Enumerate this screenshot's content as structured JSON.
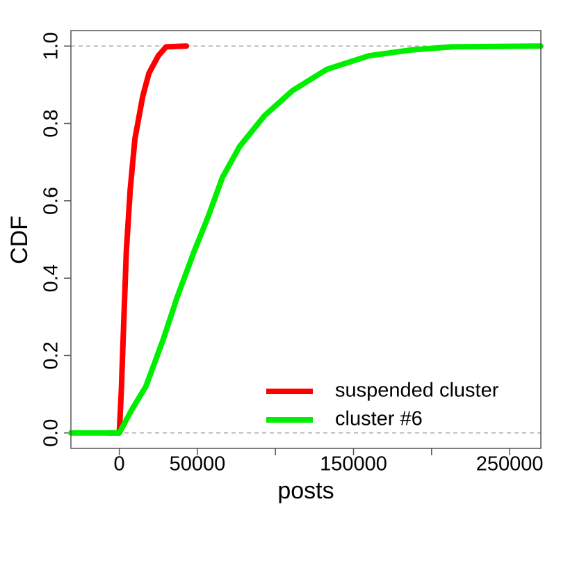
{
  "chart_data": {
    "type": "line",
    "xlabel": "posts",
    "ylabel": "CDF",
    "xlim": [
      -31000,
      270000
    ],
    "ylim": [
      -0.04,
      1.04
    ],
    "xticks": [
      0,
      50000,
      150000,
      250000
    ],
    "xticks_minor": [
      100000,
      200000
    ],
    "yticks": [
      {
        "value": 0,
        "label": "0.0"
      },
      0.2,
      0.4,
      0.6,
      0.8,
      {
        "value": 1,
        "label": "1.0"
      }
    ],
    "hlines": [
      0,
      1
    ],
    "legend": "bottomright",
    "series": [
      {
        "name": "suspended cluster",
        "color": "#ff0000",
        "x": [
          -7500,
          0,
          1300,
          2700,
          4500,
          7000,
          10000,
          15000,
          19000,
          25000,
          30000,
          43000
        ],
        "values": [
          0,
          0,
          0.11,
          0.27,
          0.47,
          0.63,
          0.76,
          0.87,
          0.93,
          0.975,
          0.998,
          1.0
        ]
      },
      {
        "name": "cluster #6",
        "color": "#00ee00",
        "x": [
          -31000,
          0,
          8000,
          17000,
          28000,
          37000,
          48000,
          57000,
          66000,
          77000,
          93000,
          111000,
          133000,
          160000,
          187000,
          213000,
          270000
        ],
        "values": [
          0,
          0,
          0.06,
          0.12,
          0.24,
          0.35,
          0.47,
          0.56,
          0.66,
          0.74,
          0.82,
          0.885,
          0.94,
          0.975,
          0.99,
          0.998,
          1.0
        ]
      }
    ]
  }
}
